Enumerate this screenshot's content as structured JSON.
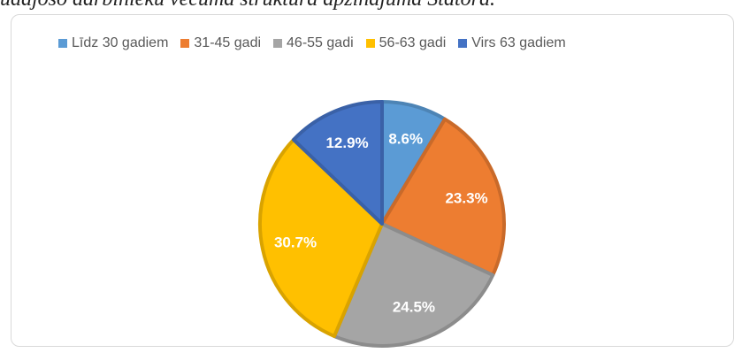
{
  "header": {
    "text": "ūdājošo darbinieku vecuma struktūra apzinājuma Statora."
  },
  "chart_data": {
    "type": "pie",
    "title": "",
    "categories": [
      "Līdz 30 gadiem",
      "31-45 gadi",
      "46-55 gadi",
      "56-63 gadi",
      "Virs 63 gadiem"
    ],
    "values": [
      8.6,
      23.3,
      24.5,
      30.7,
      12.9
    ],
    "labels": [
      "8.6%",
      "23.3%",
      "24.5%",
      "30.7%",
      "12.9%"
    ],
    "colors": [
      "#5b9bd5",
      "#ed7d31",
      "#a5a5a5",
      "#ffc000",
      "#4472c4"
    ],
    "legend_position": "top",
    "start_angle": "12 o'clock",
    "direction": "clockwise"
  }
}
